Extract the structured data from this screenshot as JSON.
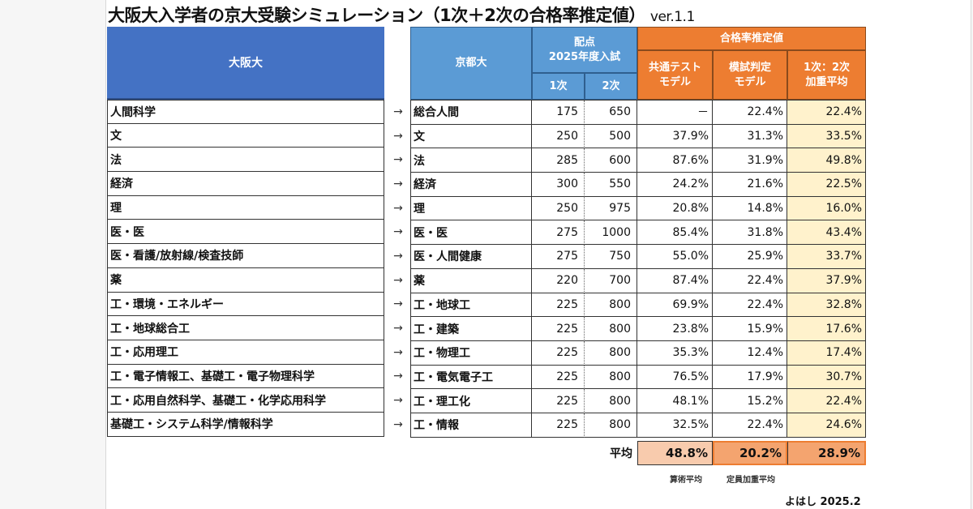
{
  "title": {
    "main": "大阪大入学者の京大受験シミュレーション（1次＋2次の合格率推定値）",
    "version": "ver.1.1"
  },
  "header": {
    "osaka": "大阪大",
    "kyoto": "京都大",
    "points_line1": "配点",
    "points_line2": "2025年度入試",
    "first": "1次",
    "second": "2次",
    "pass_rate": "合格率推定値",
    "model_common_1": "共通テスト",
    "model_common_2": "モデル",
    "model_mock_1": "模試判定",
    "model_mock_2": "モデル",
    "model_weighted_1": "1次：2次",
    "model_weighted_2": "加重平均"
  },
  "arrow": "→",
  "rows": [
    {
      "osaka": "人間科学",
      "kyoto": "総合人間",
      "p1": "175",
      "p2": "650",
      "common": "－",
      "mock": "22.4%",
      "weighted": "22.4%"
    },
    {
      "osaka": "文",
      "kyoto": "文",
      "p1": "250",
      "p2": "500",
      "common": "37.9%",
      "mock": "31.3%",
      "weighted": "33.5%"
    },
    {
      "osaka": "法",
      "kyoto": "法",
      "p1": "285",
      "p2": "600",
      "common": "87.6%",
      "mock": "31.9%",
      "weighted": "49.8%"
    },
    {
      "osaka": "経済",
      "kyoto": "経済",
      "p1": "300",
      "p2": "550",
      "common": "24.2%",
      "mock": "21.6%",
      "weighted": "22.5%"
    },
    {
      "osaka": "理",
      "kyoto": "理",
      "p1": "250",
      "p2": "975",
      "common": "20.8%",
      "mock": "14.8%",
      "weighted": "16.0%"
    },
    {
      "osaka": "医・医",
      "kyoto": "医・医",
      "p1": "275",
      "p2": "1000",
      "common": "85.4%",
      "mock": "31.8%",
      "weighted": "43.4%"
    },
    {
      "osaka": "医・看護/放射線/検査技師",
      "kyoto": "医・人間健康",
      "p1": "275",
      "p2": "750",
      "common": "55.0%",
      "mock": "25.9%",
      "weighted": "33.7%"
    },
    {
      "osaka": "薬",
      "kyoto": "薬",
      "p1": "220",
      "p2": "700",
      "common": "87.4%",
      "mock": "22.4%",
      "weighted": "37.9%"
    },
    {
      "osaka": "工・環境・エネルギー",
      "kyoto": "工・地球工",
      "p1": "225",
      "p2": "800",
      "common": "69.9%",
      "mock": "22.4%",
      "weighted": "32.8%"
    },
    {
      "osaka": "工・地球総合工",
      "kyoto": "工・建築",
      "p1": "225",
      "p2": "800",
      "common": "23.8%",
      "mock": "15.9%",
      "weighted": "17.6%"
    },
    {
      "osaka": "工・応用理工",
      "kyoto": "工・物理工",
      "p1": "225",
      "p2": "800",
      "common": "35.3%",
      "mock": "12.4%",
      "weighted": "17.4%"
    },
    {
      "osaka": "工・電子情報工、基礎工・電子物理科学",
      "kyoto": "工・電気電子工",
      "p1": "225",
      "p2": "800",
      "common": "76.5%",
      "mock": "17.9%",
      "weighted": "30.7%"
    },
    {
      "osaka": "工・応用自然科学、基礎工・化学応用科学",
      "kyoto": "工・理工化",
      "p1": "225",
      "p2": "800",
      "common": "48.1%",
      "mock": "15.2%",
      "weighted": "22.4%"
    },
    {
      "osaka": "基礎工・システム科学/情報科学",
      "kyoto": "工・情報",
      "p1": "225",
      "p2": "800",
      "common": "32.5%",
      "mock": "22.4%",
      "weighted": "24.6%"
    }
  ],
  "average": {
    "label": "平均",
    "common": "48.8%",
    "mock": "20.2%",
    "weighted": "28.9%",
    "note_arith": "算術平均",
    "note_weighted": "定員加重平均"
  },
  "credit": "よはし 2025.2",
  "colors": {
    "osaka_header": "#4472c4",
    "kyoto_header": "#5b9bd5",
    "passrate_header": "#ed7d31",
    "weighted_fill": "#fff2cc",
    "avg_light": "#f8cbad",
    "avg_dark": "#f4a46f"
  }
}
